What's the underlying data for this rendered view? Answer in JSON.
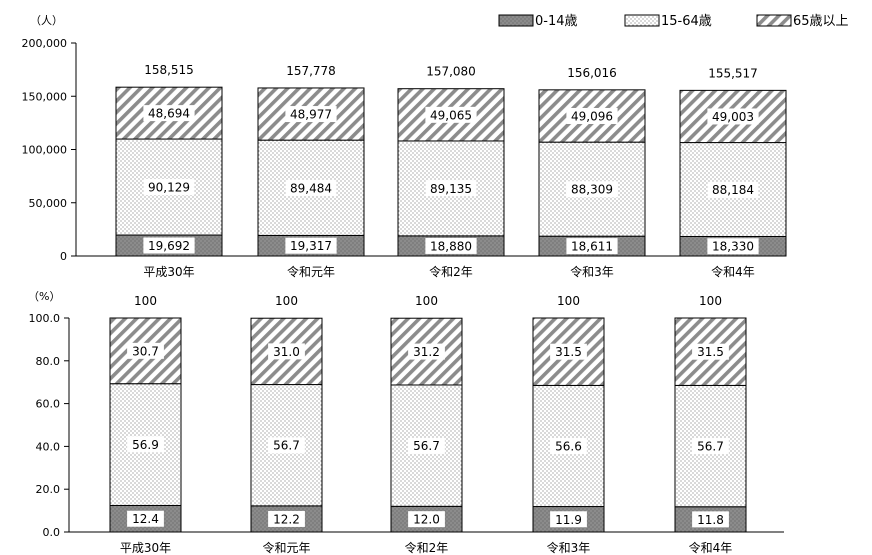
{
  "legend": [
    {
      "label": "0-14歳",
      "pattern": "dark"
    },
    {
      "label": "15-64歳",
      "pattern": "dots"
    },
    {
      "label": "65歳以上",
      "pattern": "hatch"
    }
  ],
  "colors": {
    "dark": "#808080",
    "dots": "#f2f2f2",
    "hatch": "#ffffff",
    "border": "#000000"
  },
  "chart_data": [
    {
      "type": "bar",
      "stacked": true,
      "unit_label": "（人）",
      "categories": [
        "平成30年",
        "令和元年",
        "令和2年",
        "令和3年",
        "令和4年"
      ],
      "series": [
        {
          "name": "0-14歳",
          "values": [
            19692,
            19317,
            18880,
            18611,
            18330
          ]
        },
        {
          "name": "15-64歳",
          "values": [
            90129,
            89484,
            89135,
            88309,
            88184
          ]
        },
        {
          "name": "65歳以上",
          "values": [
            48694,
            48977,
            49065,
            49096,
            49003
          ]
        }
      ],
      "value_labels": [
        [
          "19,692",
          "19,317",
          "18,880",
          "18,611",
          "18,330"
        ],
        [
          "90,129",
          "89,484",
          "89,135",
          "88,309",
          "88,184"
        ],
        [
          "48,694",
          "48,977",
          "49,065",
          "49,096",
          "49,003"
        ]
      ],
      "totals": [
        "158,515",
        "157,778",
        "157,080",
        "156,016",
        "155,517"
      ],
      "ylim": [
        0,
        200000
      ],
      "yticks": [
        0,
        50000,
        100000,
        150000,
        200000
      ],
      "ytick_labels": [
        "0",
        "50,000",
        "100,000",
        "150,000",
        "200,000"
      ],
      "legend_position": "top-right"
    },
    {
      "type": "bar",
      "stacked": true,
      "unit_label": "（%）",
      "categories": [
        "平成30年",
        "令和元年",
        "令和2年",
        "令和3年",
        "令和4年"
      ],
      "series": [
        {
          "name": "0-14歳",
          "values": [
            12.4,
            12.2,
            12.0,
            11.9,
            11.8
          ]
        },
        {
          "name": "15-64歳",
          "values": [
            56.9,
            56.7,
            56.7,
            56.6,
            56.7
          ]
        },
        {
          "name": "65歳以上",
          "values": [
            30.7,
            31.0,
            31.2,
            31.5,
            31.5
          ]
        }
      ],
      "value_labels": [
        [
          "12.4",
          "12.2",
          "12.0",
          "11.9",
          "11.8"
        ],
        [
          "56.9",
          "56.7",
          "56.7",
          "56.6",
          "56.7"
        ],
        [
          "30.7",
          "31.0",
          "31.2",
          "31.5",
          "31.5"
        ]
      ],
      "totals": [
        "100",
        "100",
        "100",
        "100",
        "100"
      ],
      "ylim": [
        0,
        100
      ],
      "yticks": [
        0,
        20,
        40,
        60,
        80,
        100
      ],
      "ytick_labels": [
        "0.0",
        "20.0",
        "40.0",
        "60.0",
        "80.0",
        "100.0"
      ]
    }
  ]
}
